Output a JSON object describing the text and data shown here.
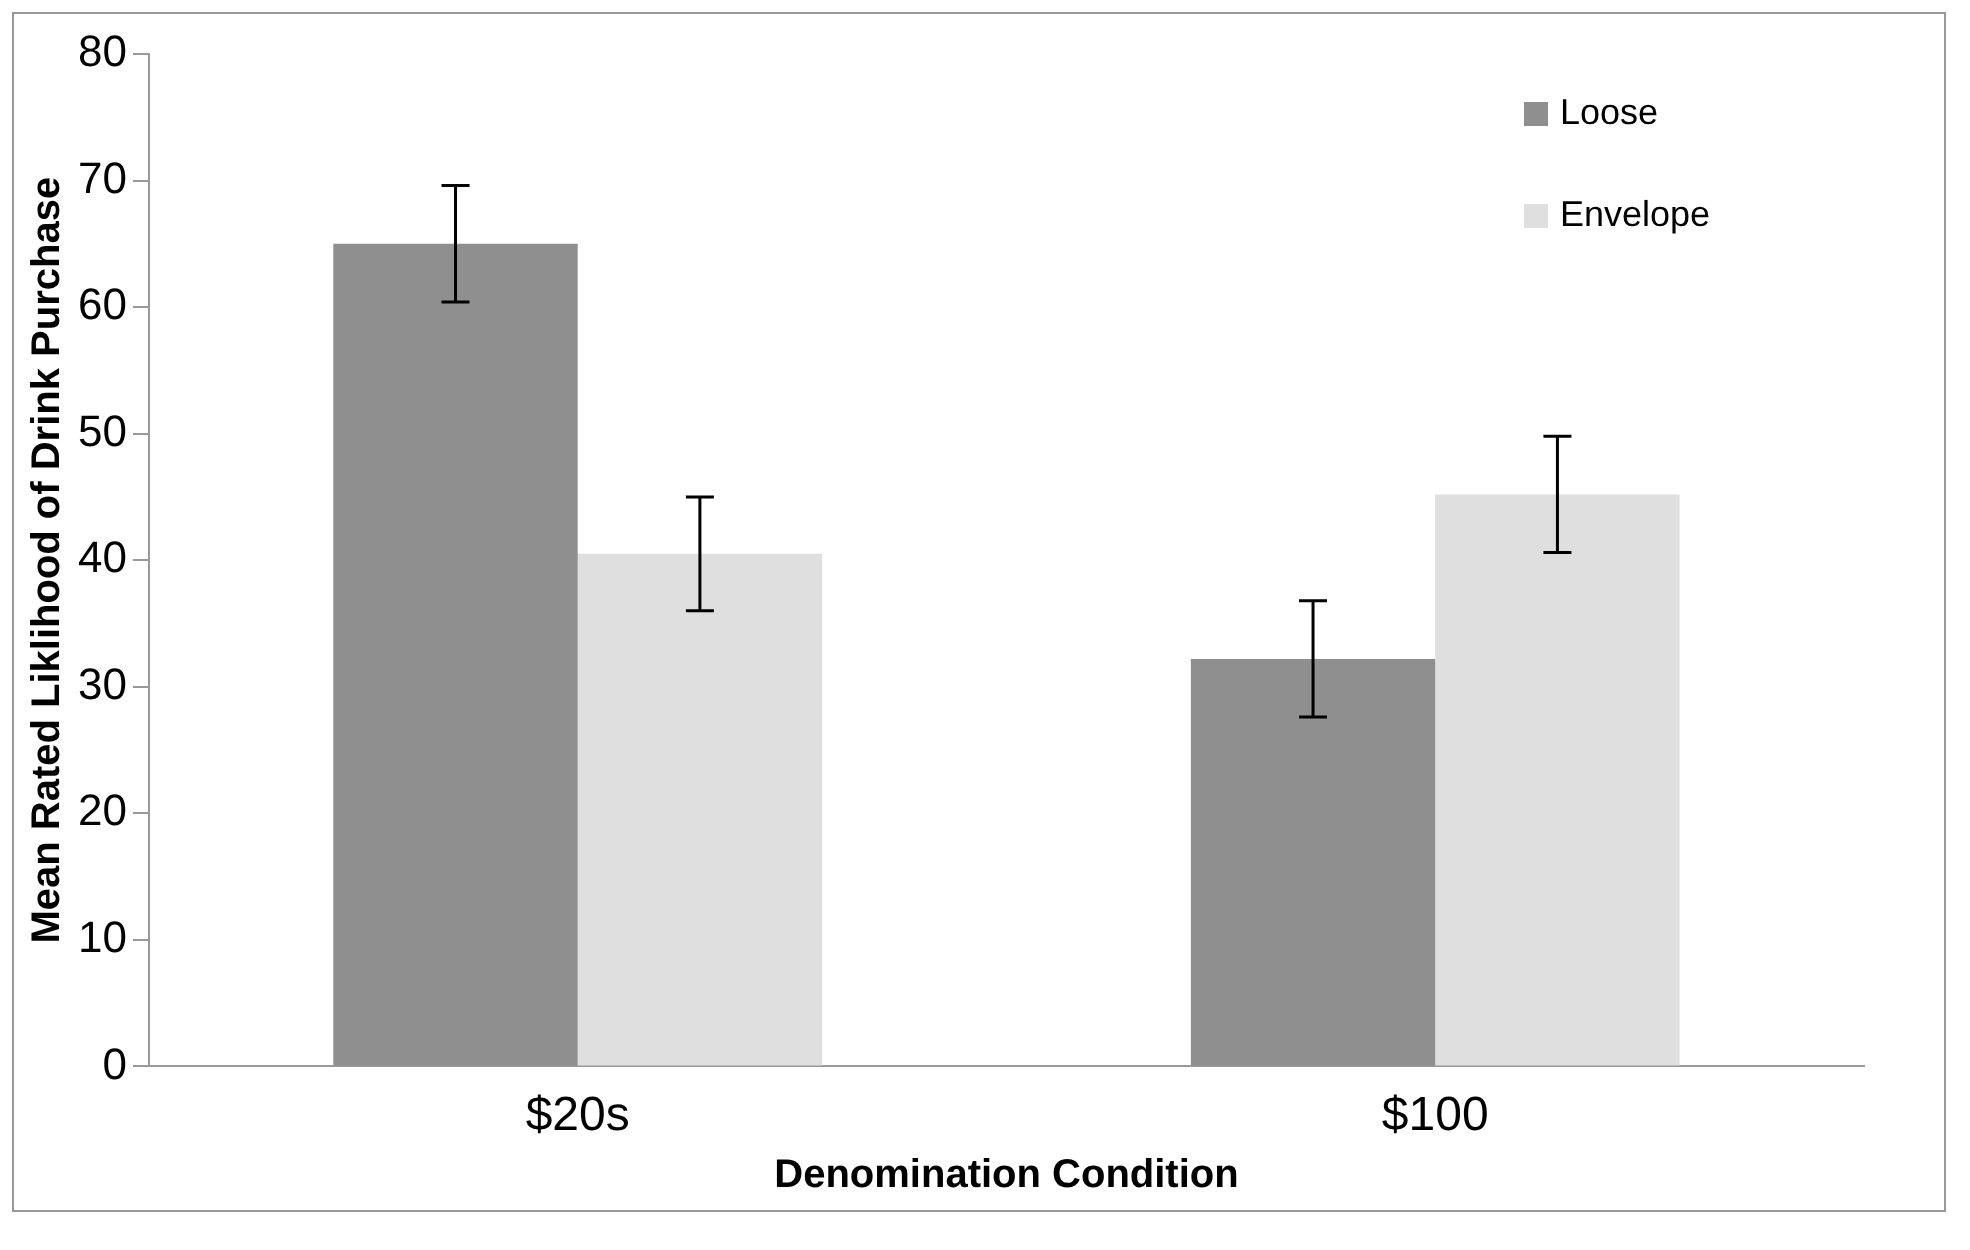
{
  "chart_data": {
    "type": "bar",
    "xlabel": "Denomination Condition",
    "ylabel": "Mean Rated Liklihood of Drink Purchase",
    "categories": [
      "$20s",
      "$100"
    ],
    "series": [
      {
        "name": "Loose",
        "color": "#8f8f8f",
        "values": [
          65,
          32.2
        ],
        "errors": [
          4.6,
          4.6
        ]
      },
      {
        "name": "Envelope",
        "color": "#dfdfdf",
        "values": [
          40.5,
          45.2
        ],
        "errors": [
          4.5,
          4.6
        ]
      }
    ],
    "ylim": [
      0,
      80
    ],
    "yticks": [
      0,
      10,
      20,
      30,
      40,
      50,
      60,
      70,
      80
    ],
    "grid": false,
    "legend": "top right"
  }
}
